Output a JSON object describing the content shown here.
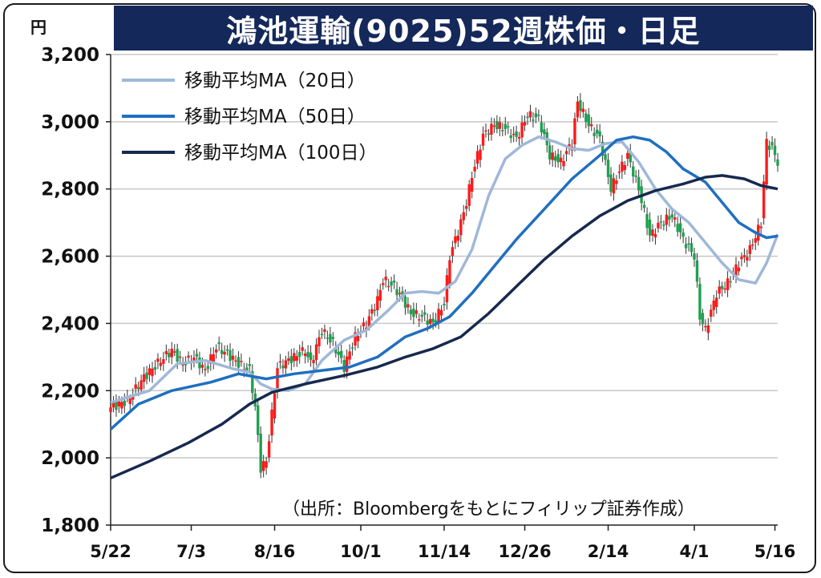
{
  "title": "鴻池運輸(9025)52週株価・日足",
  "unit": "円",
  "source_note": "（出所：Bloombergをもとにフィリップ証券作成）",
  "colors": {
    "title_bg": "#14285a",
    "up_candle": "#ff1a1a",
    "down_candle": "#20a050",
    "ma20": "#9fb8d8",
    "ma50": "#1f6fc0",
    "ma100": "#16294f",
    "grid": "#c8c8c8"
  },
  "chart_data": {
    "type": "candlestick",
    "title": "鴻池運輸(9025)52週株価・日足",
    "ylabel": "円",
    "ylim": [
      1800,
      3200
    ],
    "yticks": [
      1800,
      2000,
      2200,
      2400,
      2600,
      2800,
      3000,
      3200
    ],
    "ytick_labels": [
      "1,800",
      "2,000",
      "2,200",
      "2,400",
      "2,600",
      "2,800",
      "3,000",
      "3,200"
    ],
    "xtick_labels": [
      "5/22",
      "7/3",
      "8/16",
      "10/1",
      "11/14",
      "12/26",
      "2/14",
      "4/1",
      "5/16"
    ],
    "xtick_index": [
      0,
      29,
      59,
      90,
      120,
      149,
      179,
      210,
      239
    ],
    "grid": true,
    "legend_position": "top-left",
    "series": [
      {
        "name": "移動平均MA（20日）",
        "key": "ma20",
        "points": [
          [
            0,
            2165
          ],
          [
            14,
            2200
          ],
          [
            24,
            2280
          ],
          [
            34,
            2290
          ],
          [
            44,
            2265
          ],
          [
            50,
            2255
          ],
          [
            54,
            2220
          ],
          [
            58,
            2205
          ],
          [
            64,
            2200
          ],
          [
            70,
            2220
          ],
          [
            76,
            2290
          ],
          [
            84,
            2350
          ],
          [
            92,
            2380
          ],
          [
            100,
            2440
          ],
          [
            106,
            2490
          ],
          [
            112,
            2495
          ],
          [
            118,
            2490
          ],
          [
            124,
            2525
          ],
          [
            130,
            2620
          ],
          [
            136,
            2780
          ],
          [
            142,
            2890
          ],
          [
            148,
            2930
          ],
          [
            154,
            2955
          ],
          [
            160,
            2940
          ],
          [
            166,
            2920
          ],
          [
            172,
            2915
          ],
          [
            178,
            2935
          ],
          [
            184,
            2940
          ],
          [
            190,
            2880
          ],
          [
            196,
            2800
          ],
          [
            202,
            2740
          ],
          [
            208,
            2700
          ],
          [
            214,
            2640
          ],
          [
            220,
            2580
          ],
          [
            226,
            2530
          ],
          [
            232,
            2520
          ],
          [
            236,
            2580
          ],
          [
            240,
            2665
          ]
        ]
      },
      {
        "name": "移動平均MA（50日）",
        "key": "ma50",
        "points": [
          [
            0,
            2085
          ],
          [
            10,
            2160
          ],
          [
            22,
            2200
          ],
          [
            36,
            2225
          ],
          [
            46,
            2250
          ],
          [
            56,
            2235
          ],
          [
            66,
            2250
          ],
          [
            76,
            2260
          ],
          [
            86,
            2270
          ],
          [
            96,
            2300
          ],
          [
            106,
            2360
          ],
          [
            114,
            2385
          ],
          [
            122,
            2420
          ],
          [
            130,
            2490
          ],
          [
            138,
            2570
          ],
          [
            146,
            2650
          ],
          [
            156,
            2740
          ],
          [
            166,
            2830
          ],
          [
            176,
            2900
          ],
          [
            182,
            2945
          ],
          [
            188,
            2955
          ],
          [
            194,
            2945
          ],
          [
            200,
            2910
          ],
          [
            206,
            2860
          ],
          [
            214,
            2820
          ],
          [
            220,
            2760
          ],
          [
            226,
            2700
          ],
          [
            232,
            2670
          ],
          [
            236,
            2655
          ],
          [
            240,
            2660
          ]
        ]
      },
      {
        "name": "移動平均MA（100日）",
        "key": "ma100",
        "points": [
          [
            0,
            1940
          ],
          [
            14,
            1990
          ],
          [
            28,
            2045
          ],
          [
            40,
            2100
          ],
          [
            50,
            2160
          ],
          [
            58,
            2195
          ],
          [
            70,
            2220
          ],
          [
            84,
            2245
          ],
          [
            96,
            2270
          ],
          [
            106,
            2300
          ],
          [
            116,
            2325
          ],
          [
            126,
            2360
          ],
          [
            136,
            2430
          ],
          [
            146,
            2510
          ],
          [
            156,
            2590
          ],
          [
            166,
            2660
          ],
          [
            176,
            2720
          ],
          [
            186,
            2765
          ],
          [
            196,
            2795
          ],
          [
            206,
            2815
          ],
          [
            214,
            2835
          ],
          [
            220,
            2840
          ],
          [
            228,
            2830
          ],
          [
            234,
            2810
          ],
          [
            240,
            2800
          ]
        ]
      }
    ],
    "candle_segments": [
      [
        0,
        2150
      ],
      [
        6,
        2170
      ],
      [
        12,
        2240
      ],
      [
        18,
        2290
      ],
      [
        22,
        2320
      ],
      [
        26,
        2280
      ],
      [
        30,
        2300
      ],
      [
        34,
        2260
      ],
      [
        38,
        2330
      ],
      [
        42,
        2310
      ],
      [
        46,
        2280
      ],
      [
        50,
        2260
      ],
      [
        52,
        2150
      ],
      [
        54,
        1970
      ],
      [
        56,
        1990
      ],
      [
        60,
        2270
      ],
      [
        64,
        2290
      ],
      [
        70,
        2320
      ],
      [
        72,
        2280
      ],
      [
        76,
        2380
      ],
      [
        80,
        2340
      ],
      [
        84,
        2270
      ],
      [
        88,
        2360
      ],
      [
        92,
        2400
      ],
      [
        96,
        2470
      ],
      [
        98,
        2530
      ],
      [
        102,
        2510
      ],
      [
        106,
        2460
      ],
      [
        108,
        2430
      ],
      [
        112,
        2420
      ],
      [
        116,
        2400
      ],
      [
        120,
        2460
      ],
      [
        122,
        2600
      ],
      [
        126,
        2700
      ],
      [
        128,
        2760
      ],
      [
        130,
        2840
      ],
      [
        134,
        2960
      ],
      [
        138,
        2990
      ],
      [
        142,
        2980
      ],
      [
        146,
        2950
      ],
      [
        150,
        3020
      ],
      [
        154,
        3010
      ],
      [
        158,
        2900
      ],
      [
        162,
        2880
      ],
      [
        166,
        2940
      ],
      [
        168,
        3060
      ],
      [
        172,
        2990
      ],
      [
        176,
        2950
      ],
      [
        180,
        2800
      ],
      [
        184,
        2870
      ],
      [
        186,
        2900
      ],
      [
        190,
        2800
      ],
      [
        194,
        2660
      ],
      [
        198,
        2700
      ],
      [
        202,
        2720
      ],
      [
        206,
        2650
      ],
      [
        210,
        2600
      ],
      [
        212,
        2420
      ],
      [
        214,
        2380
      ],
      [
        218,
        2490
      ],
      [
        222,
        2520
      ],
      [
        226,
        2580
      ],
      [
        230,
        2620
      ],
      [
        234,
        2700
      ],
      [
        236,
        2940
      ],
      [
        238,
        2920
      ],
      [
        240,
        2880
      ]
    ]
  }
}
